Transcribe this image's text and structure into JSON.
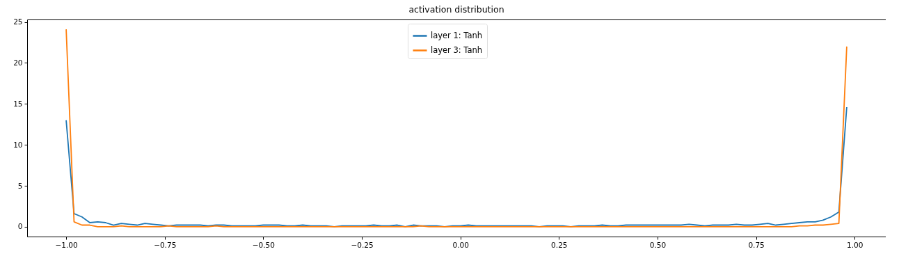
{
  "chart_data": {
    "type": "line",
    "title": "activation distribution",
    "x": [
      -1.0,
      -0.98,
      -0.96,
      -0.94,
      -0.92,
      -0.9,
      -0.88,
      -0.86,
      -0.84,
      -0.82,
      -0.8,
      -0.78,
      -0.76,
      -0.74,
      -0.72,
      -0.7,
      -0.68,
      -0.66,
      -0.64,
      -0.62,
      -0.6,
      -0.58,
      -0.56,
      -0.54,
      -0.52,
      -0.5,
      -0.48,
      -0.46,
      -0.44,
      -0.42,
      -0.4,
      -0.38,
      -0.36,
      -0.34,
      -0.32,
      -0.3,
      -0.28,
      -0.26,
      -0.24,
      -0.22,
      -0.2,
      -0.18,
      -0.16,
      -0.14,
      -0.12,
      -0.1,
      -0.08,
      -0.06,
      -0.04,
      -0.02,
      0.0,
      0.02,
      0.04,
      0.06,
      0.08,
      0.1,
      0.12,
      0.14,
      0.16,
      0.18,
      0.2,
      0.22,
      0.24,
      0.26,
      0.28,
      0.3,
      0.32,
      0.34,
      0.36,
      0.38,
      0.4,
      0.42,
      0.44,
      0.46,
      0.48,
      0.5,
      0.52,
      0.54,
      0.56,
      0.58,
      0.6,
      0.62,
      0.64,
      0.66,
      0.68,
      0.7,
      0.72,
      0.74,
      0.76,
      0.78,
      0.8,
      0.82,
      0.84,
      0.86,
      0.88,
      0.9,
      0.92,
      0.94,
      0.96,
      0.98
    ],
    "series": [
      {
        "name": "layer 1: Tanh",
        "color": "#1f77b4",
        "values": [
          13.0,
          1.6,
          1.2,
          0.5,
          0.6,
          0.5,
          0.2,
          0.4,
          0.3,
          0.2,
          0.4,
          0.3,
          0.2,
          0.1,
          0.2,
          0.2,
          0.2,
          0.2,
          0.1,
          0.2,
          0.2,
          0.1,
          0.1,
          0.1,
          0.1,
          0.2,
          0.2,
          0.2,
          0.1,
          0.1,
          0.2,
          0.1,
          0.1,
          0.1,
          0.0,
          0.1,
          0.1,
          0.1,
          0.1,
          0.2,
          0.1,
          0.1,
          0.2,
          0.0,
          0.2,
          0.1,
          0.1,
          0.1,
          0.0,
          0.1,
          0.1,
          0.2,
          0.1,
          0.1,
          0.1,
          0.1,
          0.1,
          0.1,
          0.1,
          0.1,
          0.0,
          0.1,
          0.1,
          0.1,
          0.0,
          0.1,
          0.1,
          0.1,
          0.2,
          0.1,
          0.1,
          0.2,
          0.2,
          0.2,
          0.2,
          0.2,
          0.2,
          0.2,
          0.2,
          0.3,
          0.2,
          0.1,
          0.2,
          0.2,
          0.2,
          0.3,
          0.2,
          0.2,
          0.3,
          0.4,
          0.2,
          0.3,
          0.4,
          0.5,
          0.6,
          0.6,
          0.8,
          1.2,
          1.8,
          14.6
        ]
      },
      {
        "name": "layer 3: Tanh",
        "color": "#ff7f0e",
        "values": [
          24.1,
          0.6,
          0.2,
          0.2,
          0.0,
          0.0,
          0.0,
          0.1,
          0.0,
          0.0,
          0.0,
          0.0,
          0.0,
          0.1,
          0.0,
          0.0,
          0.0,
          0.0,
          0.0,
          0.1,
          0.0,
          0.0,
          0.0,
          0.0,
          0.0,
          0.0,
          0.0,
          0.0,
          0.0,
          0.0,
          0.0,
          0.0,
          0.0,
          0.0,
          0.0,
          0.0,
          0.0,
          0.0,
          0.0,
          0.0,
          0.0,
          0.0,
          0.0,
          0.0,
          0.0,
          0.1,
          0.0,
          0.0,
          0.0,
          0.0,
          0.0,
          0.0,
          0.0,
          0.0,
          0.0,
          0.0,
          0.0,
          0.0,
          0.0,
          0.0,
          0.0,
          0.0,
          0.0,
          0.0,
          0.0,
          0.0,
          0.0,
          0.0,
          0.0,
          0.0,
          0.0,
          0.0,
          0.0,
          0.0,
          0.0,
          0.0,
          0.0,
          0.0,
          0.0,
          0.0,
          0.0,
          0.0,
          0.0,
          0.0,
          0.0,
          0.0,
          0.0,
          0.0,
          0.0,
          0.0,
          0.0,
          0.0,
          0.0,
          0.1,
          0.1,
          0.2,
          0.2,
          0.3,
          0.4,
          22.0
        ]
      }
    ],
    "xlim": [
      -1.099,
      1.079
    ],
    "ylim": [
      -1.2,
      25.3
    ],
    "xticks": [
      {
        "value": -1.0,
        "label": "−1.00"
      },
      {
        "value": -0.75,
        "label": "−0.75"
      },
      {
        "value": -0.5,
        "label": "−0.50"
      },
      {
        "value": -0.25,
        "label": "−0.25"
      },
      {
        "value": 0,
        "label": "0.00"
      },
      {
        "value": 0.25,
        "label": "0.25"
      },
      {
        "value": 0.5,
        "label": "0.50"
      },
      {
        "value": 0.75,
        "label": "0.75"
      },
      {
        "value": 1.0,
        "label": "1.00"
      }
    ],
    "yticks": [
      0,
      5,
      10,
      15,
      20,
      25
    ],
    "legend": "top",
    "marker": "none",
    "line_style": "solid",
    "grid": false
  }
}
